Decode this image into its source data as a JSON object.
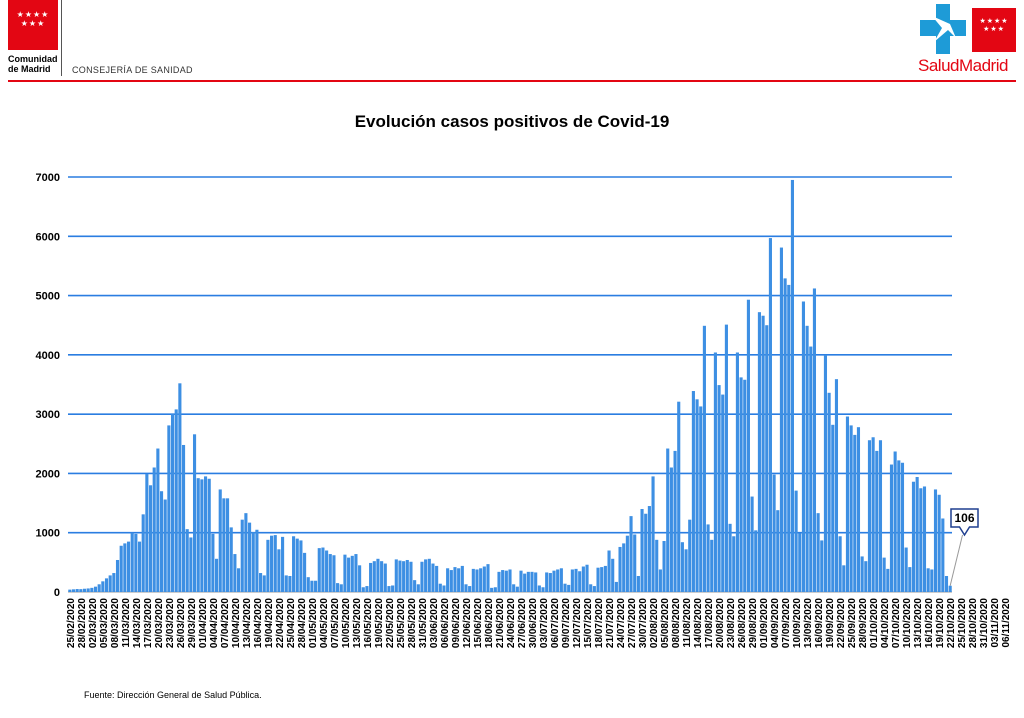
{
  "header": {
    "org_name_line1": "Comunidad",
    "org_name_line2": "de Madrid",
    "department": "CONSEJERÍA DE SANIDAD",
    "brand_left": "Salud",
    "brand_right": "Madrid",
    "brand_color": "#e30613",
    "cross_color": "#1e9bd7"
  },
  "footer": {
    "source": "Fuente: Dirección General de Salud Pública."
  },
  "chart_data": {
    "type": "bar",
    "title": "Evolución casos positivos de Covid-19",
    "xlabel": "",
    "ylabel": "",
    "ylim": [
      0,
      7000
    ],
    "yticks": [
      0,
      1000,
      2000,
      3000,
      4000,
      5000,
      6000,
      7000
    ],
    "grid": true,
    "bar_color": "#3d8fe3",
    "grid_color": "#2a7de1",
    "start_date": "2020-02-25",
    "tick_labels": [
      "25/02/2020",
      "28/02/2020",
      "02/03/2020",
      "05/03/2020",
      "08/03/2020",
      "11/03/2020",
      "14/03/2020",
      "17/03/2020",
      "20/03/2020",
      "23/03/2020",
      "26/03/2020",
      "29/03/2020",
      "01/04/2020",
      "04/04/2020",
      "07/04/2020",
      "10/04/2020",
      "13/04/2020",
      "16/04/2020",
      "19/04/2020",
      "22/04/2020",
      "25/04/2020",
      "28/04/2020",
      "01/05/2020",
      "04/05/2020",
      "07/05/2020",
      "10/05/2020",
      "13/05/2020",
      "16/05/2020",
      "19/05/2020",
      "22/05/2020",
      "25/05/2020",
      "28/05/2020",
      "31/05/2020",
      "03/06/2020",
      "06/06/2020",
      "09/06/2020",
      "12/06/2020",
      "15/06/2020",
      "18/06/2020",
      "21/06/2020",
      "24/06/2020",
      "27/06/2020",
      "30/06/2020",
      "03/07/2020",
      "06/07/2020",
      "09/07/2020",
      "12/07/2020",
      "15/07/2020",
      "18/07/2020",
      "21/07/2020",
      "24/07/2020",
      "27/07/2020",
      "30/07/2020",
      "02/08/2020",
      "05/08/2020",
      "08/08/2020",
      "11/08/2020",
      "14/08/2020",
      "17/08/2020",
      "20/08/2020",
      "23/08/2020",
      "26/08/2020",
      "29/08/2020",
      "01/09/2020",
      "04/09/2020",
      "07/09/2020",
      "10/09/2020",
      "13/09/2020",
      "16/09/2020",
      "19/09/2020",
      "22/09/2020",
      "25/09/2020",
      "28/09/2020",
      "01/10/2020",
      "04/10/2020",
      "07/10/2020",
      "10/10/2020",
      "13/10/2020",
      "16/10/2020",
      "19/10/2020",
      "22/10/2020",
      "25/10/2020",
      "28/10/2020",
      "31/10/2020",
      "03/11/2020",
      "06/11/2020"
    ],
    "values": [
      40,
      45,
      50,
      48,
      55,
      60,
      70,
      90,
      130,
      180,
      230,
      280,
      320,
      540,
      780,
      820,
      850,
      1000,
      980,
      850,
      1310,
      1990,
      1800,
      2100,
      2420,
      1700,
      1560,
      2810,
      3000,
      3080,
      3520,
      2480,
      1060,
      920,
      2660,
      1920,
      1900,
      1950,
      1910,
      980,
      560,
      1730,
      1580,
      1580,
      1090,
      640,
      400,
      1220,
      1330,
      1170,
      1010,
      1050,
      320,
      280,
      880,
      950,
      960,
      720,
      930,
      280,
      270,
      940,
      900,
      870,
      660,
      250,
      190,
      190,
      740,
      750,
      700,
      640,
      620,
      150,
      130,
      630,
      580,
      610,
      640,
      450,
      80,
      100,
      490,
      520,
      560,
      520,
      480,
      100,
      110,
      550,
      530,
      520,
      540,
      510,
      200,
      130,
      510,
      550,
      560,
      480,
      440,
      140,
      110,
      400,
      370,
      420,
      400,
      440,
      130,
      100,
      390,
      380,
      400,
      430,
      470,
      70,
      80,
      340,
      370,
      360,
      380,
      130,
      90,
      360,
      310,
      340,
      340,
      330,
      110,
      80,
      330,
      320,
      360,
      380,
      400,
      140,
      120,
      380,
      390,
      350,
      430,
      460,
      130,
      100,
      410,
      420,
      440,
      700,
      560,
      170,
      760,
      820,
      950,
      1280,
      970,
      270,
      1400,
      1320,
      1450,
      1950,
      880,
      380,
      860,
      2420,
      2100,
      2380,
      3210,
      840,
      720,
      1220,
      3390,
      3250,
      3130,
      4490,
      1140,
      880,
      4040,
      3490,
      3330,
      4510,
      1150,
      940,
      4040,
      3620,
      3580,
      4930,
      1610,
      1040,
      4720,
      4660,
      4500,
      5970,
      1980,
      1380,
      5810,
      5290,
      5180,
      6950,
      1710,
      990,
      4900,
      4490,
      4140,
      5120,
      1330,
      870,
      4000,
      3360,
      2820,
      3590,
      940,
      450,
      2960,
      2810,
      2650,
      2780,
      600,
      520,
      2560,
      2610,
      2380,
      2560,
      580,
      390,
      2150,
      2370,
      2220,
      2180,
      750,
      420,
      1860,
      1940,
      1750,
      1780,
      400,
      380,
      1730,
      1640,
      1240,
      270,
      106
    ],
    "annotation": {
      "text": "106"
    }
  }
}
